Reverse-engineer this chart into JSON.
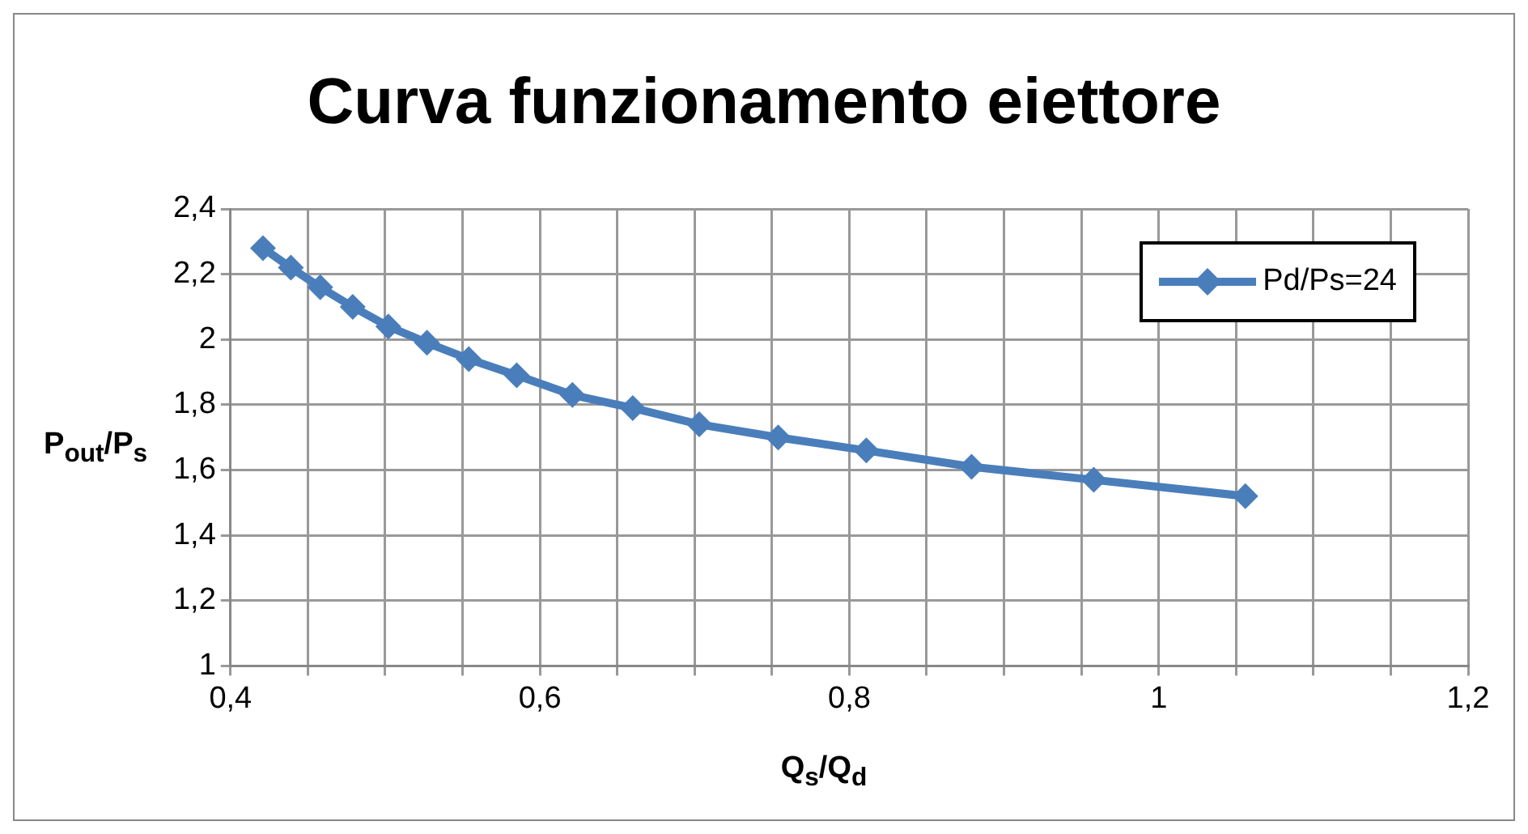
{
  "chart_data": {
    "type": "line",
    "title": "Curva funzionamento eiettore",
    "xlabel": "Q$_{s}$/Q$_{d}$",
    "ylabel": "P$_{out}$/P$_{s}$",
    "x": [
      0.421,
      0.439,
      0.458,
      0.479,
      0.502,
      0.527,
      0.554,
      0.585,
      0.621,
      0.66,
      0.703,
      0.754,
      0.811,
      0.879,
      0.958,
      1.056
    ],
    "series": [
      {
        "name": "Pd/Ps=24",
        "color": "#4a7ebb",
        "values": [
          2.28,
          2.22,
          2.16,
          2.1,
          2.04,
          1.99,
          1.94,
          1.89,
          1.83,
          1.79,
          1.74,
          1.7,
          1.66,
          1.61,
          1.57,
          1.52
        ]
      }
    ],
    "xlim": [
      0.4,
      1.2
    ],
    "xticks": [
      {
        "value": 0.4,
        "label": "0,4"
      },
      {
        "value": 0.45,
        "label": null
      },
      {
        "value": 0.5,
        "label": null
      },
      {
        "value": 0.55,
        "label": null
      },
      {
        "value": 0.6,
        "label": "0,6"
      },
      {
        "value": 0.65,
        "label": null
      },
      {
        "value": 0.7,
        "label": null
      },
      {
        "value": 0.75,
        "label": null
      },
      {
        "value": 0.8,
        "label": "0,8"
      },
      {
        "value": 0.85,
        "label": null
      },
      {
        "value": 0.9,
        "label": null
      },
      {
        "value": 0.95,
        "label": null
      },
      {
        "value": 1,
        "label": "1"
      },
      {
        "value": 1.05,
        "label": null
      },
      {
        "value": 1.1,
        "label": null
      },
      {
        "value": 1.15,
        "label": null
      },
      {
        "value": 1.2,
        "label": "1,2"
      }
    ],
    "ylim": [
      1,
      2.4
    ],
    "yticks": [
      1,
      {
        "value": 1.2,
        "label": "1,2"
      },
      {
        "value": 1.4,
        "label": "1,4"
      },
      {
        "value": 1.6,
        "label": "1,6"
      },
      {
        "value": 1.8,
        "label": "1,8"
      },
      2,
      {
        "value": 2.2,
        "label": "2,2"
      },
      {
        "value": 2.4,
        "label": "2,4"
      }
    ],
    "grid": true,
    "legend": "top right",
    "marker": "diamond",
    "line_style": "solid"
  }
}
